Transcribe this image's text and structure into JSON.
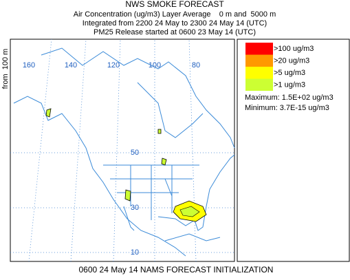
{
  "header": {
    "title": "NWS SMOKE FORECAST",
    "lines": [
      "Air Concentration (ug/m3) Layer Average    0 m and  5000 m",
      "Integrated from 2200 24 May to 2300 24 May 14 (UTC)",
      "PM25 Release started at 0600 23 May 14 (UTC)"
    ]
  },
  "side_label": "from  100 m",
  "legend": [
    {
      "label": ">100 ug/m3",
      "color": "#ff0000"
    },
    {
      "label": ">20 ug/m3",
      "color": "#ff9900"
    },
    {
      "label": ">5 ug/m3",
      "color": "#ffff00"
    },
    {
      "label": ">1 ug/m3",
      "color": "#ccff33"
    }
  ],
  "stats": [
    "Maximum: 1.5E+02 ug/m3",
    "Minimum: 3.7E-15 ug/m3"
  ],
  "map_labels": {
    "lon": [
      "160",
      "140",
      "120",
      "100",
      "80"
    ],
    "lat": [
      "50",
      "30",
      "10"
    ]
  },
  "footer": "0600 24 May 14 NAMS FORECAST INITIALIZATION"
}
